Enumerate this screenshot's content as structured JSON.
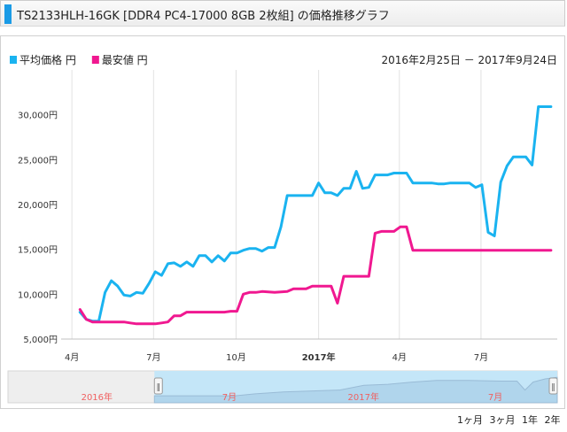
{
  "header": {
    "title": "TS2133HLH-16GK [DDR4 PC4-17000 8GB 2枚組] の価格推移グラフ",
    "accent_color": "#1a9be6"
  },
  "chart_data": {
    "type": "line",
    "legend": [
      {
        "name": "平均価格 円",
        "color": "#1ab3f0"
      },
      {
        "name": "最安値 円",
        "color": "#f01890"
      }
    ],
    "legend_position": "top-left",
    "date_range": "2016年2月25日 － 2017年9月24日",
    "ylim": [
      5000,
      35000
    ],
    "y_ticks": [
      "5,000円",
      "10,000円",
      "15,000円",
      "20,000円",
      "25,000円",
      "30,000円"
    ],
    "y_tick_values": [
      5000,
      10000,
      15000,
      20000,
      25000,
      30000
    ],
    "x_ticks": [
      {
        "label": "4月",
        "date": "2016-04-01",
        "bold": false
      },
      {
        "label": "7月",
        "date": "2016-07-01",
        "bold": false
      },
      {
        "label": "10月",
        "date": "2016-10-01",
        "bold": false
      },
      {
        "label": "2017年",
        "date": "2017-01-01",
        "bold": true
      },
      {
        "label": "4月",
        "date": "2017-04-01",
        "bold": false
      },
      {
        "label": "7月",
        "date": "2017-07-01",
        "bold": false
      }
    ],
    "xlim": [
      "2016-03-20",
      "2017-09-24"
    ],
    "grid": {
      "x": true,
      "y": false
    },
    "series": [
      {
        "name": "平均価格 円",
        "color": "#1ab3f0",
        "points": [
          [
            "2016-04-10",
            8000
          ],
          [
            "2016-04-17",
            7200
          ],
          [
            "2016-04-24",
            7000
          ],
          [
            "2016-05-01",
            7000
          ],
          [
            "2016-05-08",
            10200
          ],
          [
            "2016-05-15",
            11500
          ],
          [
            "2016-05-22",
            10900
          ],
          [
            "2016-05-29",
            9900
          ],
          [
            "2016-06-05",
            9800
          ],
          [
            "2016-06-12",
            10200
          ],
          [
            "2016-06-19",
            10100
          ],
          [
            "2016-06-26",
            11200
          ],
          [
            "2016-07-03",
            12500
          ],
          [
            "2016-07-10",
            12100
          ],
          [
            "2016-07-17",
            13400
          ],
          [
            "2016-07-24",
            13500
          ],
          [
            "2016-07-31",
            13100
          ],
          [
            "2016-08-07",
            13600
          ],
          [
            "2016-08-14",
            13100
          ],
          [
            "2016-08-21",
            14300
          ],
          [
            "2016-08-28",
            14300
          ],
          [
            "2016-09-04",
            13600
          ],
          [
            "2016-09-11",
            14300
          ],
          [
            "2016-09-18",
            13700
          ],
          [
            "2016-09-25",
            14600
          ],
          [
            "2016-10-02",
            14600
          ],
          [
            "2016-10-09",
            14900
          ],
          [
            "2016-10-16",
            15100
          ],
          [
            "2016-10-23",
            15100
          ],
          [
            "2016-10-30",
            14800
          ],
          [
            "2016-11-06",
            15200
          ],
          [
            "2016-11-13",
            15200
          ],
          [
            "2016-11-20",
            17500
          ],
          [
            "2016-11-27",
            21000
          ],
          [
            "2016-12-04",
            21000
          ],
          [
            "2016-12-11",
            21000
          ],
          [
            "2016-12-18",
            21000
          ],
          [
            "2016-12-25",
            21000
          ],
          [
            "2017-01-01",
            22400
          ],
          [
            "2017-01-08",
            21300
          ],
          [
            "2017-01-15",
            21300
          ],
          [
            "2017-01-22",
            21000
          ],
          [
            "2017-01-29",
            21800
          ],
          [
            "2017-02-05",
            21800
          ],
          [
            "2017-02-12",
            23700
          ],
          [
            "2017-02-19",
            21800
          ],
          [
            "2017-02-26",
            21900
          ],
          [
            "2017-03-05",
            23300
          ],
          [
            "2017-03-12",
            23300
          ],
          [
            "2017-03-19",
            23300
          ],
          [
            "2017-03-26",
            23500
          ],
          [
            "2017-04-02",
            23500
          ],
          [
            "2017-04-09",
            23500
          ],
          [
            "2017-04-16",
            22400
          ],
          [
            "2017-04-23",
            22400
          ],
          [
            "2017-04-30",
            22400
          ],
          [
            "2017-05-07",
            22400
          ],
          [
            "2017-05-14",
            22300
          ],
          [
            "2017-05-21",
            22300
          ],
          [
            "2017-05-28",
            22400
          ],
          [
            "2017-06-04",
            22400
          ],
          [
            "2017-06-11",
            22400
          ],
          [
            "2017-06-18",
            22400
          ],
          [
            "2017-06-25",
            21900
          ],
          [
            "2017-07-02",
            22200
          ],
          [
            "2017-07-09",
            16900
          ],
          [
            "2017-07-16",
            16500
          ],
          [
            "2017-07-23",
            22500
          ],
          [
            "2017-07-30",
            24300
          ],
          [
            "2017-08-06",
            25300
          ],
          [
            "2017-08-13",
            25300
          ],
          [
            "2017-08-20",
            25300
          ],
          [
            "2017-08-27",
            24400
          ],
          [
            "2017-09-03",
            30900
          ],
          [
            "2017-09-10",
            30900
          ],
          [
            "2017-09-17",
            30900
          ]
        ]
      },
      {
        "name": "最安値 円",
        "color": "#f01890",
        "points": [
          [
            "2016-04-10",
            8300
          ],
          [
            "2016-04-17",
            7200
          ],
          [
            "2016-04-24",
            6900
          ],
          [
            "2016-05-01",
            6900
          ],
          [
            "2016-05-15",
            6900
          ],
          [
            "2016-05-29",
            6900
          ],
          [
            "2016-06-05",
            6800
          ],
          [
            "2016-06-12",
            6700
          ],
          [
            "2016-06-19",
            6700
          ],
          [
            "2016-06-26",
            6700
          ],
          [
            "2016-07-03",
            6700
          ],
          [
            "2016-07-10",
            6800
          ],
          [
            "2016-07-17",
            6900
          ],
          [
            "2016-07-24",
            7600
          ],
          [
            "2016-07-31",
            7600
          ],
          [
            "2016-08-07",
            8000
          ],
          [
            "2016-08-14",
            8000
          ],
          [
            "2016-09-04",
            8000
          ],
          [
            "2016-09-18",
            8000
          ],
          [
            "2016-09-25",
            8100
          ],
          [
            "2016-10-02",
            8100
          ],
          [
            "2016-10-09",
            10000
          ],
          [
            "2016-10-16",
            10200
          ],
          [
            "2016-10-23",
            10200
          ],
          [
            "2016-10-30",
            10300
          ],
          [
            "2016-11-13",
            10200
          ],
          [
            "2016-11-27",
            10300
          ],
          [
            "2016-12-04",
            10600
          ],
          [
            "2016-12-18",
            10600
          ],
          [
            "2016-12-25",
            10900
          ],
          [
            "2017-01-08",
            10900
          ],
          [
            "2017-01-15",
            10900
          ],
          [
            "2017-01-22",
            9000
          ],
          [
            "2017-01-29",
            12000
          ],
          [
            "2017-02-12",
            12000
          ],
          [
            "2017-02-26",
            12000
          ],
          [
            "2017-03-05",
            16800
          ],
          [
            "2017-03-12",
            17000
          ],
          [
            "2017-03-26",
            17000
          ],
          [
            "2017-04-02",
            17500
          ],
          [
            "2017-04-09",
            17500
          ],
          [
            "2017-04-16",
            14900
          ],
          [
            "2017-05-07",
            14900
          ],
          [
            "2017-06-04",
            14900
          ],
          [
            "2017-07-02",
            14900
          ],
          [
            "2017-08-06",
            14900
          ],
          [
            "2017-09-17",
            14900
          ]
        ]
      }
    ]
  },
  "navigator": {
    "labels": [
      {
        "text": "2016年",
        "date": "2016-01-01"
      },
      {
        "text": "7月",
        "date": "2016-07-01"
      },
      {
        "text": "2017年",
        "date": "2017-01-01"
      },
      {
        "text": "7月",
        "date": "2017-07-01"
      }
    ],
    "label_color": "#f06060",
    "range_start": "2016-03-20",
    "range_end": "2017-09-24",
    "axis_start": "2015-09-01",
    "axis_end": "2017-09-24",
    "handle_glyph": "‖",
    "fill_color": "#c4e6f8",
    "line_color": "#88aac8",
    "series_points": [
      [
        0.0,
        0.78
      ],
      [
        0.2,
        0.78
      ],
      [
        0.25,
        0.72
      ],
      [
        0.32,
        0.66
      ],
      [
        0.46,
        0.6
      ],
      [
        0.52,
        0.45
      ],
      [
        0.58,
        0.42
      ],
      [
        0.64,
        0.35
      ],
      [
        0.7,
        0.3
      ],
      [
        0.78,
        0.3
      ],
      [
        0.86,
        0.32
      ],
      [
        0.9,
        0.32
      ],
      [
        0.92,
        0.6
      ],
      [
        0.94,
        0.35
      ],
      [
        0.97,
        0.25
      ],
      [
        1.0,
        0.2
      ]
    ]
  },
  "zoom": {
    "options": [
      "1ヶ月",
      "3ヶ月",
      "1年",
      "2年"
    ]
  }
}
